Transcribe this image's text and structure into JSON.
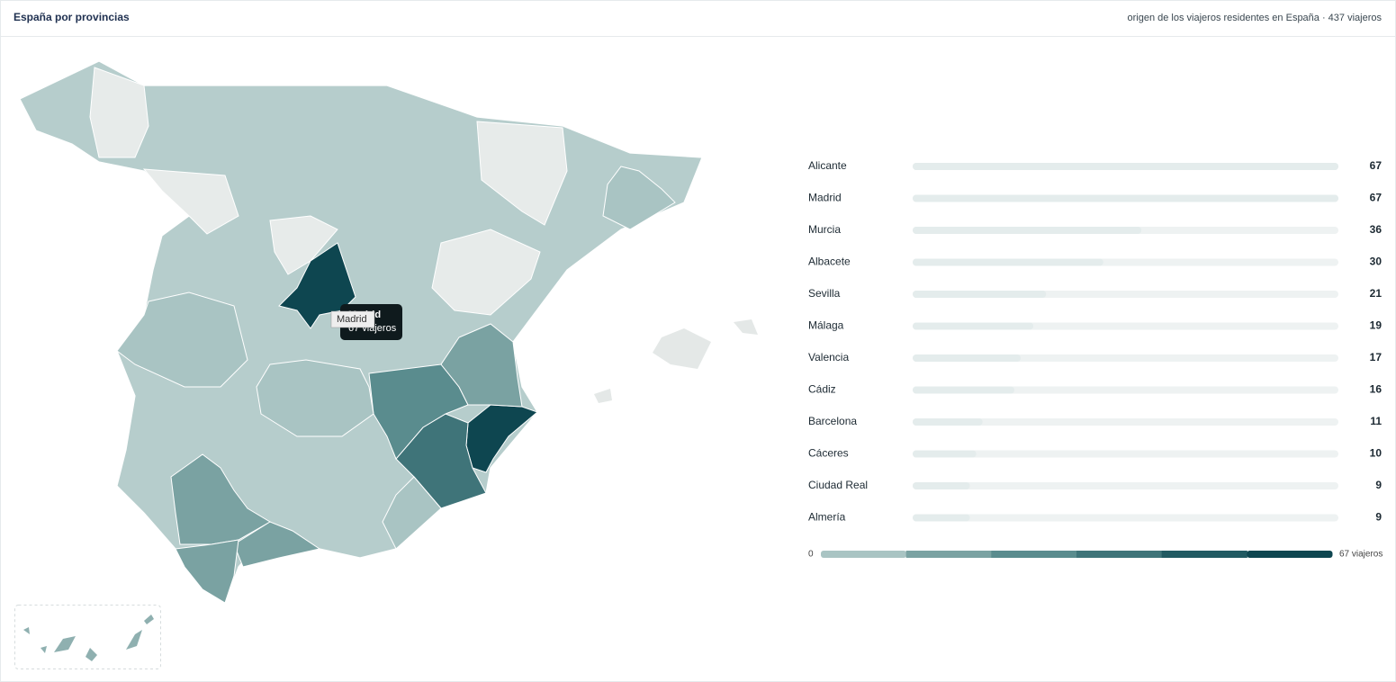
{
  "header": {
    "title": "España por provincias",
    "subtitle": "origen de los viajeros residentes en España · 437 viajeros"
  },
  "tooltip": {
    "title": "Madrid",
    "text": "67 viajeros"
  },
  "hover_label": "Madrid",
  "chart_data": {
    "type": "bar",
    "categories": [
      "Alicante",
      "Madrid",
      "Murcia",
      "Albacete",
      "Sevilla",
      "Málaga",
      "Valencia",
      "Cádiz",
      "Barcelona",
      "Cáceres",
      "Ciudad Real",
      "Almería"
    ],
    "values": [
      67,
      67,
      36,
      30,
      21,
      19,
      17,
      16,
      11,
      10,
      9,
      9
    ],
    "xlim": [
      0,
      67
    ]
  },
  "legend": {
    "min": 0,
    "max_label": "67 viajeros",
    "colors": [
      "#a9c4c3",
      "#7aa2a2",
      "#5a8c8e",
      "#3f7479",
      "#215a62",
      "#0e4650"
    ]
  }
}
